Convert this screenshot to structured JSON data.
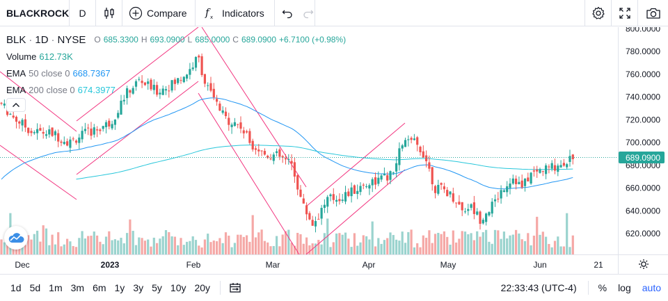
{
  "toolbar": {
    "symbol": "BLACKROCK",
    "interval": "D",
    "compare_label": "Compare",
    "indicators_label": "Indicators"
  },
  "legend": {
    "symbol": "BLK",
    "interval": "1D",
    "exchange": "NYSE",
    "open_label": "O",
    "open": "685.3300",
    "high_label": "H",
    "high": "693.0900",
    "low_label": "L",
    "low": "685.0000",
    "close_label": "C",
    "close": "689.0900",
    "change": "+6.7100 (+0.98%)",
    "volume_label": "Volume",
    "volume": "612.73K",
    "ema50_label": "EMA",
    "ema50_params": "50 close 0",
    "ema50_value": "668.7367",
    "ema200_label": "EMA",
    "ema200_params": "200 close 0",
    "ema200_value": "674.3977"
  },
  "price_axis": {
    "ticks": [
      "800.0000",
      "780.0000",
      "760.0000",
      "740.0000",
      "720.0000",
      "700.0000",
      "680.0000",
      "660.0000",
      "640.0000",
      "620.0000"
    ],
    "current_price": "689.0900"
  },
  "time_axis": {
    "labels": [
      "Dec",
      "2023",
      "Feb",
      "Mar",
      "Apr",
      "May",
      "Jun",
      "21"
    ]
  },
  "ranges": [
    "1d",
    "5d",
    "1m",
    "3m",
    "6m",
    "1y",
    "3y",
    "5y",
    "10y",
    "20y"
  ],
  "bottombar": {
    "time": "22:33:43 (UTC-4)",
    "percent": "%",
    "log": "log",
    "auto": "auto"
  },
  "colors": {
    "up": "#26a69a",
    "down": "#ef5350",
    "ema50": "#2196f3",
    "ema200": "#26c6da",
    "trendline": "#f23680",
    "accent": "#2962ff"
  },
  "icons": {
    "candles": "candlestick-icon",
    "compare": "plus-circle-icon",
    "indicators": "fx-icon",
    "undo": "undo-icon",
    "redo": "redo-icon",
    "settings": "gear-icon",
    "fullscreen": "fullscreen-icon",
    "snapshot": "camera-icon",
    "calendar": "calendar-range-icon",
    "collapse": "chevron-up-icon",
    "logo": "cloud-logo-icon"
  }
}
